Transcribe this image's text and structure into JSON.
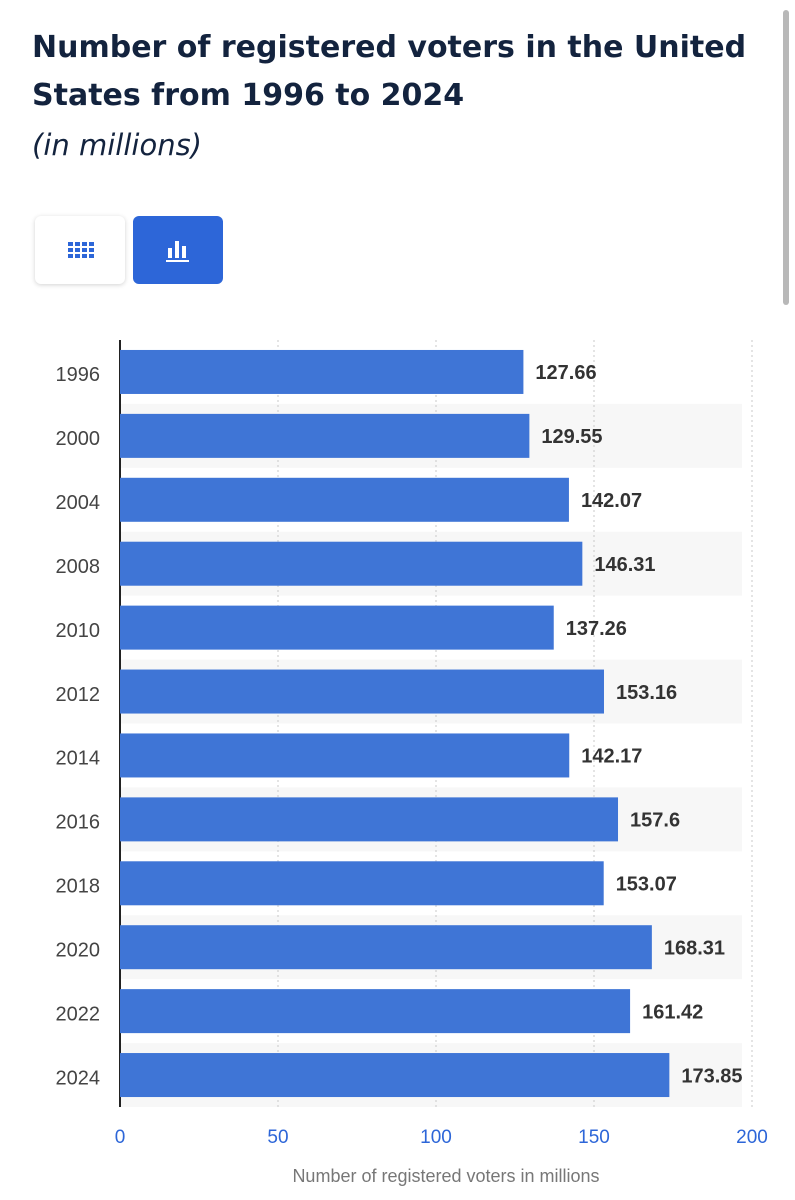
{
  "chart_data": {
    "type": "bar",
    "orientation": "horizontal",
    "title": "Number of registered voters in the United States from 1996 to 2024",
    "subtitle": "(in millions)",
    "x_label": "Number of registered voters in millions",
    "categories": [
      "1996",
      "2000",
      "2004",
      "2008",
      "2010",
      "2012",
      "2014",
      "2016",
      "2018",
      "2020",
      "2022",
      "2024"
    ],
    "values": [
      127.66,
      129.55,
      142.07,
      146.31,
      137.26,
      153.16,
      142.17,
      157.6,
      153.07,
      168.31,
      161.42,
      173.85
    ],
    "color": "#3f75d6",
    "xlim": [
      0,
      200
    ],
    "xticks": [
      0,
      50,
      100,
      150,
      200
    ],
    "grid": true
  }
}
